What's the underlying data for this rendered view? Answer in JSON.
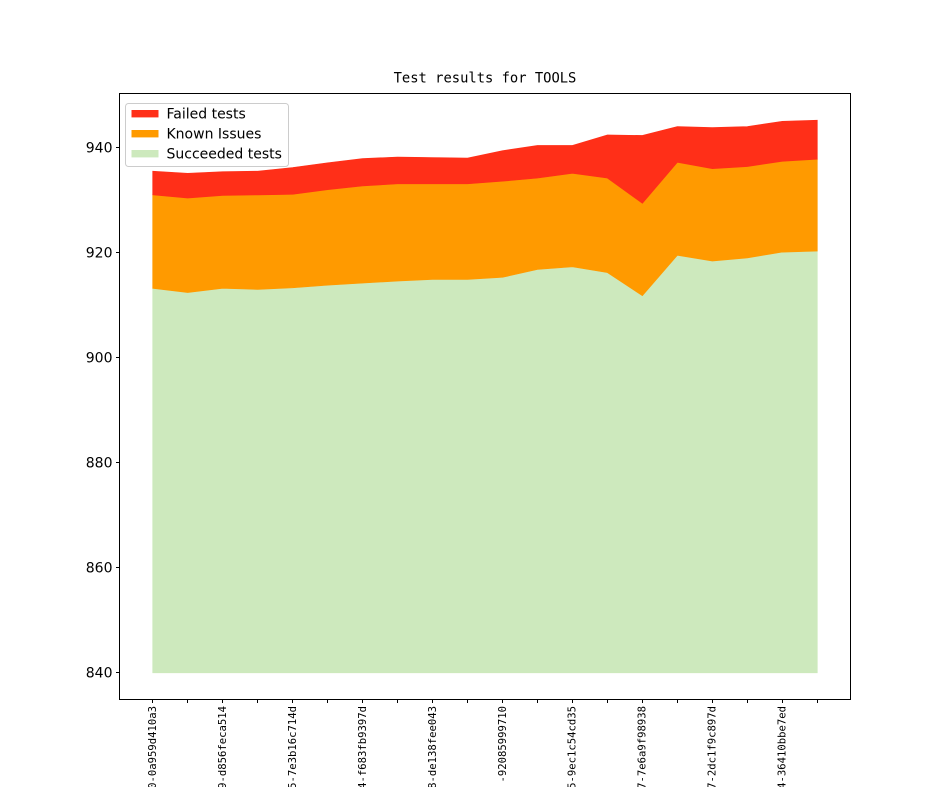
{
  "title": "Test results for TOOLS",
  "legend": {
    "entries": [
      {
        "label": "Failed tests",
        "color": "#ff2f18"
      },
      {
        "label": "Known Issues",
        "color": "#ff9a00"
      },
      {
        "label": "Succeeded tests",
        "color": "#cde9bd"
      }
    ],
    "position": "upper left"
  },
  "chart_data": {
    "type": "area",
    "stacked": true,
    "title": "Test results for TOOLS",
    "n_points": 20,
    "stack_base": 840,
    "x_tick_labels": [
      "0-0a959d410a3",
      "9-d856feca514",
      "5-7e3b16c714d",
      "4-f683fb9397d",
      "8-de138fee043",
      "-92085999710",
      "5-9ec1c54cd35",
      "7-7e6a9f98938",
      "7-2dc1f9c897d",
      "4-36410bbe7ed"
    ],
    "x_label_step": 2,
    "y_ticks": [
      840,
      860,
      880,
      900,
      920,
      940
    ],
    "ylim": [
      834.9,
      950.3
    ],
    "xlim": [
      -0.95,
      19.95
    ],
    "grid": false,
    "series": [
      {
        "name": "Succeeded tests",
        "color": "#cde9bd",
        "absolute": true,
        "values": [
          913.2,
          912.4,
          913.2,
          913.0,
          913.3,
          913.8,
          914.2,
          914.6,
          914.9,
          914.9,
          915.3,
          916.8,
          917.3,
          916.2,
          911.8,
          919.5,
          918.4,
          919.0,
          920.1,
          920.3
        ]
      },
      {
        "name": "Known Issues",
        "color": "#ff9a00",
        "absolute": false,
        "values": [
          17.8,
          18.0,
          17.7,
          18.0,
          17.8,
          18.2,
          18.5,
          18.5,
          18.2,
          18.2,
          18.3,
          17.4,
          17.8,
          18.0,
          17.6,
          17.7,
          17.6,
          17.4,
          17.3,
          17.5
        ]
      },
      {
        "name": "Failed tests",
        "color": "#ff2f18",
        "absolute": false,
        "values": [
          4.5,
          4.7,
          4.5,
          4.5,
          5.1,
          5.1,
          5.2,
          5.1,
          5.0,
          4.9,
          5.8,
          6.2,
          5.3,
          8.2,
          12.9,
          6.8,
          7.8,
          7.6,
          7.6,
          7.4
        ]
      }
    ]
  }
}
